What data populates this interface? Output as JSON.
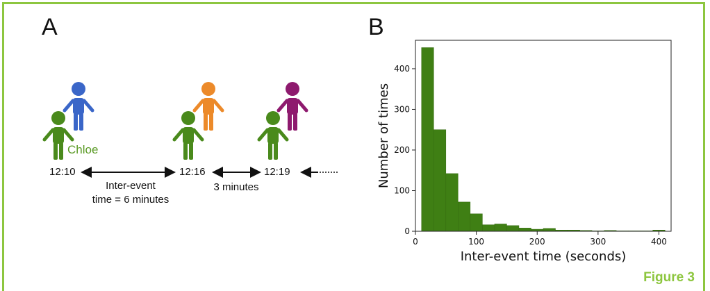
{
  "panel_a": {
    "letter": "A",
    "person_name": "Chloe",
    "times": [
      "12:10",
      "12:16",
      "12:19"
    ],
    "interval1_line1": "Inter-event",
    "interval1_line2": "time = 6 minutes",
    "interval2": "3 minutes",
    "colors": {
      "green": "#4a8a1c",
      "blue": "#3a66c8",
      "orange": "#ec8a2a",
      "purple": "#8e1a6e"
    }
  },
  "panel_b": {
    "letter": "B"
  },
  "figure_label": "Figure 3",
  "chart_data": {
    "type": "bar",
    "title": "",
    "xlabel": "Inter-event time (seconds)",
    "ylabel": "Number of times",
    "xlim": [
      0,
      420
    ],
    "ylim": [
      0,
      470
    ],
    "xticks": [
      0,
      100,
      200,
      300,
      400
    ],
    "yticks": [
      0,
      100,
      200,
      300,
      400
    ],
    "bar_color": "#3f7f14",
    "bins": [
      {
        "x0": 10,
        "x1": 30,
        "value": 452
      },
      {
        "x0": 30,
        "x1": 50,
        "value": 250
      },
      {
        "x0": 50,
        "x1": 70,
        "value": 142
      },
      {
        "x0": 70,
        "x1": 90,
        "value": 72
      },
      {
        "x0": 90,
        "x1": 110,
        "value": 43
      },
      {
        "x0": 110,
        "x1": 130,
        "value": 16
      },
      {
        "x0": 130,
        "x1": 150,
        "value": 18
      },
      {
        "x0": 150,
        "x1": 170,
        "value": 14
      },
      {
        "x0": 170,
        "x1": 190,
        "value": 8
      },
      {
        "x0": 190,
        "x1": 210,
        "value": 5
      },
      {
        "x0": 210,
        "x1": 230,
        "value": 7
      },
      {
        "x0": 230,
        "x1": 250,
        "value": 3
      },
      {
        "x0": 250,
        "x1": 270,
        "value": 3
      },
      {
        "x0": 270,
        "x1": 290,
        "value": 2
      },
      {
        "x0": 290,
        "x1": 310,
        "value": 1
      },
      {
        "x0": 310,
        "x1": 330,
        "value": 2
      },
      {
        "x0": 330,
        "x1": 350,
        "value": 1
      },
      {
        "x0": 350,
        "x1": 370,
        "value": 1
      },
      {
        "x0": 370,
        "x1": 390,
        "value": 1
      },
      {
        "x0": 390,
        "x1": 410,
        "value": 3
      }
    ]
  }
}
